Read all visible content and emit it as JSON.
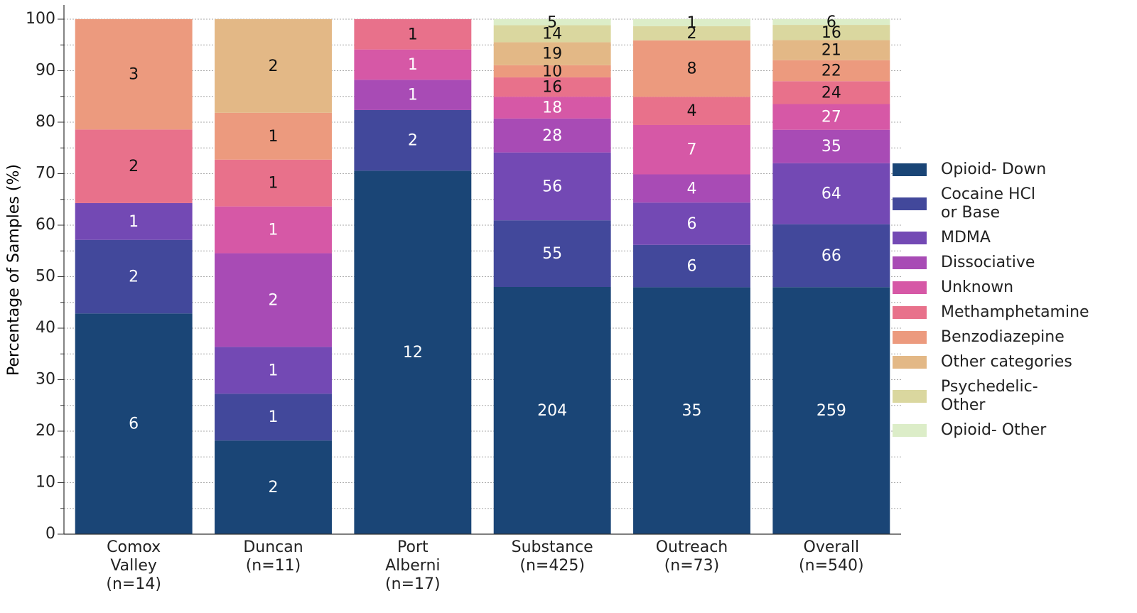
{
  "chart_data": {
    "type": "bar",
    "stacking": "percent",
    "ylabel": "Percentage of Samples (%)",
    "categories": [
      "Comox\nValley\n(n=14)",
      "Duncan\n(n=11)",
      "Port\nAlberni\n(n=17)",
      "Substance\n(n=425)",
      "Outreach\n(n=73)",
      "Overall\n(n=540)"
    ],
    "series": [
      {
        "name": "Opioid- Down",
        "color": "#1a4576",
        "values": [
          6,
          2,
          12,
          204,
          35,
          259
        ]
      },
      {
        "name": "Cocaine HCl\nor Base",
        "color": "#42489b",
        "values": [
          2,
          1,
          2,
          55,
          6,
          66
        ]
      },
      {
        "name": "MDMA",
        "color": "#7349b4",
        "values": [
          1,
          1,
          null,
          56,
          6,
          64
        ]
      },
      {
        "name": "Dissociative",
        "color": "#a84bb5",
        "values": [
          null,
          2,
          1,
          28,
          4,
          35
        ]
      },
      {
        "name": "Unknown",
        "color": "#d658a6",
        "values": [
          null,
          1,
          1,
          18,
          7,
          27
        ]
      },
      {
        "name": "Methamphetamine",
        "color": "#e8718b",
        "values": [
          2,
          1,
          1,
          16,
          4,
          24
        ]
      },
      {
        "name": "Benzodiazepine",
        "color": "#ec9a7e",
        "values": [
          3,
          1,
          null,
          10,
          8,
          22
        ]
      },
      {
        "name": "Other categories",
        "color": "#e3b886",
        "values": [
          null,
          2,
          null,
          19,
          null,
          21
        ]
      },
      {
        "name": "Psychedelic-\nOther",
        "color": "#dad79f",
        "values": [
          null,
          null,
          null,
          14,
          2,
          16
        ]
      },
      {
        "name": "Opioid- Other",
        "color": "#dcedc8",
        "values": [
          null,
          null,
          null,
          5,
          1,
          6
        ]
      }
    ],
    "ylim": [
      0,
      100
    ],
    "yticks": [
      0,
      10,
      20,
      30,
      40,
      50,
      60,
      70,
      80,
      90,
      100
    ],
    "yminorticks": [
      5,
      15,
      25,
      35,
      45,
      55,
      65,
      75,
      85,
      95
    ],
    "grid": true,
    "legend": "right"
  }
}
